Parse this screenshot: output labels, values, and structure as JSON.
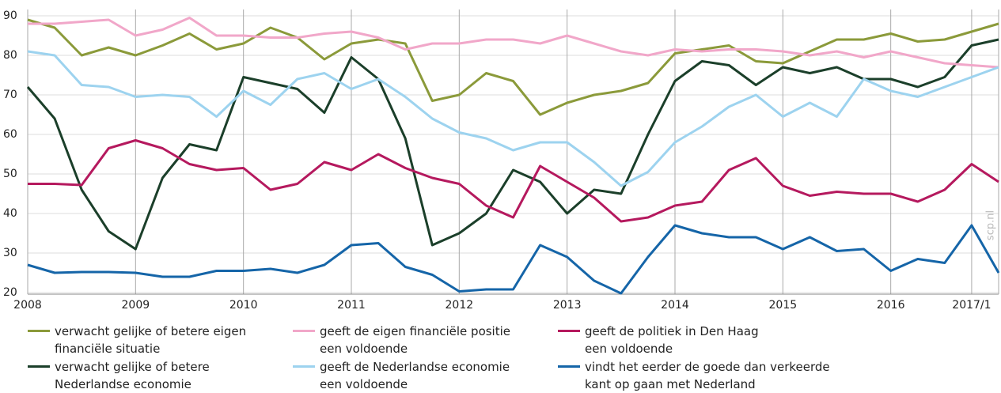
{
  "chart_data": {
    "type": "line",
    "categories": [
      "2008",
      null,
      null,
      null,
      "2009",
      null,
      null,
      null,
      "2010",
      null,
      null,
      null,
      "2011",
      null,
      null,
      null,
      "2012",
      null,
      null,
      null,
      "2013",
      null,
      null,
      null,
      "2014",
      null,
      null,
      null,
      "2015",
      null,
      null,
      null,
      "2016",
      null,
      null,
      "2017/1",
      null
    ],
    "series": [
      {
        "name": "verwacht gelijke of betere eigen\nfinanciële situatie",
        "color": "#8b9a3a",
        "values": [
          89,
          87,
          80,
          82,
          80,
          82.5,
          85.5,
          81.5,
          83,
          87,
          84.5,
          79,
          83,
          84,
          83,
          68.5,
          70,
          75.5,
          73.5,
          65,
          68,
          70,
          71,
          73,
          80.5,
          81.5,
          82.5,
          78.5,
          78,
          81,
          84,
          84,
          85.5,
          83.5,
          84,
          86,
          88
        ]
      },
      {
        "name": "verwacht gelijke of betere\nNederlandse economie",
        "color": "#1b3f2a",
        "values": [
          72,
          64,
          46,
          35.5,
          31,
          49,
          57.5,
          56,
          74.5,
          73,
          71.5,
          65.5,
          79.5,
          74,
          59,
          32,
          35,
          40,
          51,
          48,
          40,
          46,
          45,
          60,
          73.5,
          78.5,
          77.5,
          72.5,
          77,
          75.5,
          77,
          74,
          74,
          72,
          74.5,
          82.5,
          84
        ]
      },
      {
        "name": "geeft de eigen financiële positie\neen voldoende",
        "color": "#f1a7c9",
        "values": [
          88,
          88,
          88.5,
          89,
          85,
          86.5,
          89.5,
          85,
          85,
          84.5,
          84.5,
          85.5,
          86,
          84.5,
          81.5,
          83,
          83,
          84,
          84,
          83,
          85,
          83,
          81,
          80,
          81.5,
          81,
          81.5,
          81.5,
          81,
          80,
          81,
          79.5,
          81,
          79.5,
          78,
          77.5,
          77
        ]
      },
      {
        "name": "geeft de Nederlandse economie\neen voldoende",
        "color": "#9dd3ef",
        "values": [
          81,
          80,
          72.5,
          72,
          69.5,
          70,
          69.5,
          64.5,
          71,
          67.5,
          74,
          75.5,
          71.5,
          74,
          69.5,
          64,
          60.5,
          59,
          56,
          58,
          58,
          53,
          47,
          50.5,
          58,
          62,
          67,
          70,
          64.5,
          68,
          64.5,
          74,
          71,
          69.5,
          72,
          74.5,
          77
        ]
      },
      {
        "name": "geeft de politiek in Den Haag\neen voldoende",
        "color": "#b5195e",
        "values": [
          47.5,
          47.5,
          47.2,
          56.5,
          58.5,
          56.5,
          52.5,
          51,
          51.5,
          46,
          47.5,
          53,
          51,
          55,
          51.5,
          49,
          47.5,
          42,
          39,
          52,
          48,
          44,
          38,
          39,
          42,
          43,
          51,
          54,
          47,
          44.5,
          45.5,
          45,
          45,
          43,
          46,
          52.5,
          48
        ]
      },
      {
        "name": "vindt het eerder de goede dan verkeerde\nkant op gaan met Nederland",
        "color": "#1565a8",
        "values": [
          27,
          25,
          25.2,
          25.2,
          25,
          24,
          24,
          25.5,
          25.5,
          26,
          25,
          27,
          32,
          32.5,
          26.5,
          24.5,
          20.3,
          20.8,
          20.8,
          32,
          29,
          23,
          19.8,
          29,
          37,
          35,
          34,
          34,
          31,
          34,
          30.5,
          31,
          25.5,
          28.5,
          27.5,
          37,
          25
        ]
      }
    ],
    "ylim": [
      20,
      90
    ],
    "yticks": [
      20,
      30,
      40,
      50,
      60,
      70,
      80,
      90
    ],
    "grid": true,
    "watermark": "scp.nl"
  }
}
